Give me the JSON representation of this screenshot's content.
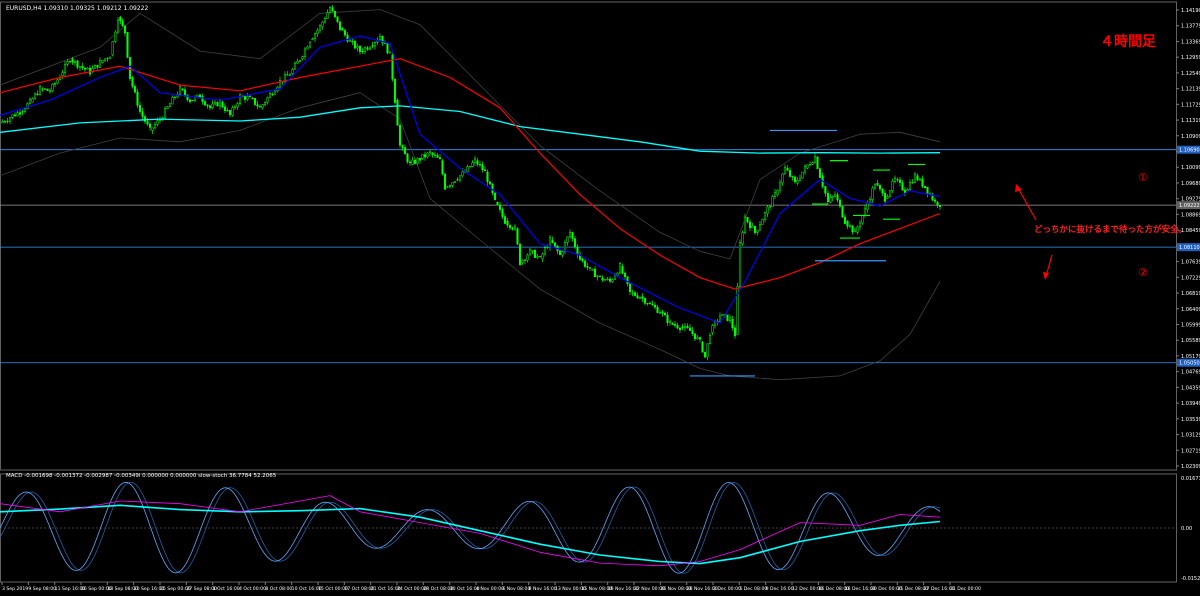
{
  "window": {
    "symbol_header": "EURUSD,H4  1.09310 1.09325 1.09212 1.09222",
    "macd_header": "MACD -0.001698 -0.001372 -0.002987 -0.00349i 0.000000 0.000000  slow-stoch 36.7784 52.2065"
  },
  "annotations": {
    "timeframe_label": "４時間足",
    "note": "どっちかに抜けるまで待った方が安全。",
    "level_1_marker": "①",
    "level_2_marker": "②"
  },
  "colors": {
    "background": "#000000",
    "candle_up": "#00ff00",
    "candle_down": "#00ff00",
    "ma_fast": "#0000ff",
    "ma_mid": "#ff0000",
    "ma_slow": "#00ffff",
    "bollinger": "#404040",
    "level_line": "#3399ff",
    "macd_line": "#00ffff",
    "macd_signal": "#ff00ff",
    "annotation": "#ff0000",
    "grid_text": "#ffffff"
  },
  "chart_data": [
    {
      "type": "candlestick",
      "title": "",
      "price_axis_ticks": [
        "1.14190",
        "1.13779",
        "1.13369",
        "1.12959",
        "1.12549",
        "1.12139",
        "1.11729",
        "1.11319",
        "1.10909",
        "1.10499",
        "1.10099",
        "1.09689",
        "1.09279",
        "1.08869",
        "1.08459",
        "1.08049",
        "1.07639",
        "1.07229",
        "1.06819",
        "1.06409",
        "1.05999",
        "1.05589",
        "1.05179",
        "1.04769",
        "1.04359",
        "1.03949",
        "1.03539",
        "1.03129",
        "1.02719",
        "1.02309"
      ],
      "ylim": [
        1.0221,
        1.146
      ],
      "current_price": 1.09222,
      "levels": [
        {
          "name": "level-1",
          "price": 1.1069,
          "label": "1.10690"
        },
        {
          "name": "current",
          "price": 1.09222,
          "label": "1.09222"
        },
        {
          "name": "level-2",
          "price": 1.0811,
          "label": "1.08110"
        },
        {
          "name": "low",
          "price": 1.0505,
          "label": "1.05050"
        }
      ],
      "time_axis_labels": [
        "3 Sep 2019",
        "9 Sep 08:00",
        "11 Sep 16:00",
        "16 Sep 00:00",
        "18 Sep 08:00",
        "20 Sep 16:00",
        "25 Sep 00:00",
        "27 Sep 08:00",
        "1 Oct 16:00",
        "4 Oct 00:00",
        "8 Oct 08:00",
        "10 Oct 16:00",
        "15 Oct 00:00",
        "17 Oct 08:00",
        "21 Oct 16:00",
        "24 Oct 00:00",
        "28 Oct 08:00",
        "30 Oct 16:00",
        "4 Nov 00:00",
        "6 Nov 08:00",
        "8 Nov 16:00",
        "13 Nov 00:00",
        "15 Nov 08:00",
        "19 Nov 16:00",
        "22 Nov 00:00",
        "26 Nov 08:00",
        "28 Nov 16:00",
        "3 Dec 00:00",
        "5 Dec 08:00",
        "9 Dec 16:00",
        "12 Dec 00:00",
        "16 Dec 08:00",
        "18 Dec 16:00",
        "20 Dec 00:00",
        "25 Dec 08:00",
        "27 Dec 16:00",
        "31 Dec 00:00"
      ],
      "price_path": [
        [
          0,
          1.114
        ],
        [
          10,
          1.1155
        ],
        [
          20,
          1.117
        ],
        [
          30,
          1.1195
        ],
        [
          40,
          1.123
        ],
        [
          50,
          1.1225
        ],
        [
          60,
          1.1265
        ],
        [
          70,
          1.131
        ],
        [
          80,
          1.129
        ],
        [
          90,
          1.1275
        ],
        [
          100,
          1.13
        ],
        [
          110,
          1.132
        ],
        [
          118,
          1.142
        ],
        [
          125,
          1.138
        ],
        [
          130,
          1.126
        ],
        [
          140,
          1.117
        ],
        [
          150,
          1.112
        ],
        [
          160,
          1.115
        ],
        [
          170,
          1.119
        ],
        [
          180,
          1.123
        ],
        [
          190,
          1.12
        ],
        [
          200,
          1.121
        ],
        [
          210,
          1.118
        ],
        [
          220,
          1.1195
        ],
        [
          230,
          1.116
        ],
        [
          240,
          1.121
        ],
        [
          250,
          1.1205
        ],
        [
          260,
          1.118
        ],
        [
          270,
          1.1215
        ],
        [
          280,
          1.125
        ],
        [
          290,
          1.127
        ],
        [
          300,
          1.131
        ],
        [
          310,
          1.136
        ],
        [
          320,
          1.1395
        ],
        [
          330,
          1.1445
        ],
        [
          340,
          1.139
        ],
        [
          350,
          1.1355
        ],
        [
          360,
          1.133
        ],
        [
          370,
          1.1345
        ],
        [
          380,
          1.137
        ],
        [
          390,
          1.132
        ],
        [
          395,
          1.12
        ],
        [
          400,
          1.108
        ],
        [
          410,
          1.103
        ],
        [
          420,
          1.1045
        ],
        [
          430,
          1.106
        ],
        [
          440,
          1.104
        ],
        [
          445,
          1.097
        ],
        [
          455,
          1.099
        ],
        [
          465,
          1.101
        ],
        [
          475,
          1.104
        ],
        [
          485,
          1.101
        ],
        [
          495,
          1.093
        ],
        [
          505,
          1.088
        ],
        [
          515,
          1.086
        ],
        [
          520,
          1.077
        ],
        [
          530,
          1.08
        ],
        [
          540,
          1.078
        ],
        [
          550,
          1.083
        ],
        [
          560,
          1.079
        ],
        [
          570,
          1.085
        ],
        [
          580,
          1.078
        ],
        [
          590,
          1.075
        ],
        [
          600,
          1.073
        ],
        [
          610,
          1.072
        ],
        [
          620,
          1.076
        ],
        [
          630,
          1.069
        ],
        [
          640,
          1.068
        ],
        [
          650,
          1.066
        ],
        [
          660,
          1.064
        ],
        [
          670,
          1.061
        ],
        [
          680,
          1.06
        ],
        [
          690,
          1.059
        ],
        [
          700,
          1.056
        ],
        [
          705,
          1.052
        ],
        [
          710,
          1.0585
        ],
        [
          720,
          1.063
        ],
        [
          730,
          1.062
        ],
        [
          735,
          1.058
        ],
        [
          740,
          1.082
        ],
        [
          745,
          1.089
        ],
        [
          755,
          1.085
        ],
        [
          765,
          1.09
        ],
        [
          775,
          1.095
        ],
        [
          785,
          1.102
        ],
        [
          795,
          1.098
        ],
        [
          805,
          1.102
        ],
        [
          815,
          1.105
        ],
        [
          820,
          1.1
        ],
        [
          828,
          1.093
        ],
        [
          835,
          1.095
        ],
        [
          845,
          1.088
        ],
        [
          855,
          1.085
        ],
        [
          865,
          1.091
        ],
        [
          875,
          1.098
        ],
        [
          885,
          1.094
        ],
        [
          895,
          1.099
        ],
        [
          905,
          1.096
        ],
        [
          915,
          1.1
        ],
        [
          925,
          1.097
        ],
        [
          935,
          1.093
        ],
        [
          940,
          1.0925
        ]
      ],
      "ma_fast": [
        [
          0,
          1.116
        ],
        [
          50,
          1.12
        ],
        [
          100,
          1.126
        ],
        [
          130,
          1.129
        ],
        [
          160,
          1.122
        ],
        [
          220,
          1.12
        ],
        [
          280,
          1.123
        ],
        [
          320,
          1.134
        ],
        [
          360,
          1.137
        ],
        [
          390,
          1.135
        ],
        [
          420,
          1.111
        ],
        [
          460,
          1.102
        ],
        [
          500,
          1.095
        ],
        [
          540,
          1.082
        ],
        [
          580,
          1.079
        ],
        [
          620,
          1.073
        ],
        [
          680,
          1.065
        ],
        [
          720,
          1.061
        ],
        [
          745,
          1.072
        ],
        [
          780,
          1.09
        ],
        [
          820,
          1.099
        ],
        [
          850,
          1.094
        ],
        [
          880,
          1.092
        ],
        [
          910,
          1.096
        ],
        [
          940,
          1.0945
        ]
      ],
      "ma_mid": [
        [
          0,
          1.122
        ],
        [
          60,
          1.126
        ],
        [
          120,
          1.129
        ],
        [
          180,
          1.124
        ],
        [
          240,
          1.1225
        ],
        [
          300,
          1.126
        ],
        [
          360,
          1.129
        ],
        [
          400,
          1.131
        ],
        [
          450,
          1.126
        ],
        [
          500,
          1.118
        ],
        [
          540,
          1.106
        ],
        [
          580,
          1.095
        ],
        [
          620,
          1.086
        ],
        [
          660,
          1.079
        ],
        [
          700,
          1.073
        ],
        [
          735,
          1.07
        ],
        [
          780,
          1.073
        ],
        [
          820,
          1.077
        ],
        [
          860,
          1.082
        ],
        [
          900,
          1.086
        ],
        [
          940,
          1.09
        ]
      ],
      "ma_slow": [
        [
          0,
          1.1115
        ],
        [
          80,
          1.114
        ],
        [
          160,
          1.115
        ],
        [
          240,
          1.1145
        ],
        [
          300,
          1.1155
        ],
        [
          360,
          1.118
        ],
        [
          400,
          1.1185
        ],
        [
          460,
          1.117
        ],
        [
          520,
          1.113
        ],
        [
          580,
          1.111
        ],
        [
          640,
          1.109
        ],
        [
          700,
          1.1065
        ],
        [
          760,
          1.106
        ],
        [
          820,
          1.1061
        ],
        [
          880,
          1.106
        ],
        [
          940,
          1.1061
        ]
      ],
      "bollinger_upper": [
        [
          0,
          1.124
        ],
        [
          100,
          1.134
        ],
        [
          140,
          1.143
        ],
        [
          200,
          1.133
        ],
        [
          260,
          1.131
        ],
        [
          320,
          1.143
        ],
        [
          380,
          1.144
        ],
        [
          420,
          1.14
        ],
        [
          480,
          1.124
        ],
        [
          540,
          1.108
        ],
        [
          600,
          1.096
        ],
        [
          660,
          1.085
        ],
        [
          700,
          1.08
        ],
        [
          730,
          1.078
        ],
        [
          760,
          1.099
        ],
        [
          800,
          1.106
        ],
        [
          860,
          1.111
        ],
        [
          900,
          1.1115
        ],
        [
          940,
          1.109
        ]
      ],
      "bollinger_lower": [
        [
          0,
          1.1
        ],
        [
          60,
          1.106
        ],
        [
          120,
          1.11
        ],
        [
          180,
          1.109
        ],
        [
          240,
          1.112
        ],
        [
          300,
          1.118
        ],
        [
          360,
          1.122
        ],
        [
          400,
          1.115
        ],
        [
          430,
          1.094
        ],
        [
          480,
          1.083
        ],
        [
          540,
          1.07
        ],
        [
          600,
          1.061
        ],
        [
          660,
          1.054
        ],
        [
          700,
          1.049
        ],
        [
          730,
          1.047
        ],
        [
          780,
          1.046
        ],
        [
          840,
          1.047
        ],
        [
          880,
          1.051
        ],
        [
          910,
          1.058
        ],
        [
          940,
          1.072
        ]
      ],
      "support_resistance_segments": [
        {
          "price": 1.112,
          "x": [
            770,
            837
          ],
          "color": "#3399ff"
        },
        {
          "price": 1.0775,
          "x": [
            815,
            886
          ],
          "color": "#3399ff"
        },
        {
          "price": 1.047,
          "x": [
            690,
            755
          ],
          "color": "#3399ff"
        },
        {
          "price": 1.104,
          "x": [
            830,
            848
          ],
          "color": "#00ff00"
        },
        {
          "price": 1.1015,
          "x": [
            873,
            890
          ],
          "color": "#00ff00"
        },
        {
          "price": 1.103,
          "x": [
            908,
            925
          ],
          "color": "#00ff00"
        },
        {
          "price": 1.0925,
          "x": [
            812,
            828
          ],
          "color": "#00ff00"
        },
        {
          "price": 1.0835,
          "x": [
            840,
            860
          ],
          "color": "#00ff00"
        },
        {
          "price": 1.0885,
          "x": [
            883,
            900
          ],
          "color": "#00ff00"
        },
        {
          "price": 1.0895,
          "x": [
            853,
            870
          ],
          "color": "#00ff00"
        }
      ]
    },
    {
      "type": "line",
      "title": "MACD",
      "axis_labels": [
        "0.016713",
        "0.00",
        "-0.015245"
      ],
      "ylim": [
        -1.0,
        1.0
      ],
      "series": [
        {
          "name": "macd",
          "color": "#00ffff",
          "values": [
            [
              0,
              0.3
            ],
            [
              60,
              0.35
            ],
            [
              120,
              0.42
            ],
            [
              180,
              0.34
            ],
            [
              240,
              0.3
            ],
            [
              300,
              0.32
            ],
            [
              360,
              0.36
            ],
            [
              420,
              0.2
            ],
            [
              480,
              -0.05
            ],
            [
              540,
              -0.3
            ],
            [
              600,
              -0.5
            ],
            [
              660,
              -0.62
            ],
            [
              700,
              -0.66
            ],
            [
              740,
              -0.55
            ],
            [
              800,
              -0.25
            ],
            [
              860,
              -0.05
            ],
            [
              900,
              0.05
            ],
            [
              940,
              0.12
            ]
          ]
        },
        {
          "name": "signal",
          "color": "#ff00ff",
          "values": [
            [
              0,
              0.45
            ],
            [
              60,
              0.3
            ],
            [
              120,
              0.5
            ],
            [
              180,
              0.45
            ],
            [
              240,
              0.3
            ],
            [
              300,
              0.5
            ],
            [
              330,
              0.6
            ],
            [
              360,
              0.3
            ],
            [
              420,
              0.1
            ],
            [
              480,
              -0.1
            ],
            [
              540,
              -0.45
            ],
            [
              600,
              -0.65
            ],
            [
              660,
              -0.7
            ],
            [
              700,
              -0.62
            ],
            [
              740,
              -0.4
            ],
            [
              800,
              0.1
            ],
            [
              860,
              0.05
            ],
            [
              900,
              0.25
            ],
            [
              940,
              0.2
            ]
          ]
        }
      ]
    }
  ]
}
